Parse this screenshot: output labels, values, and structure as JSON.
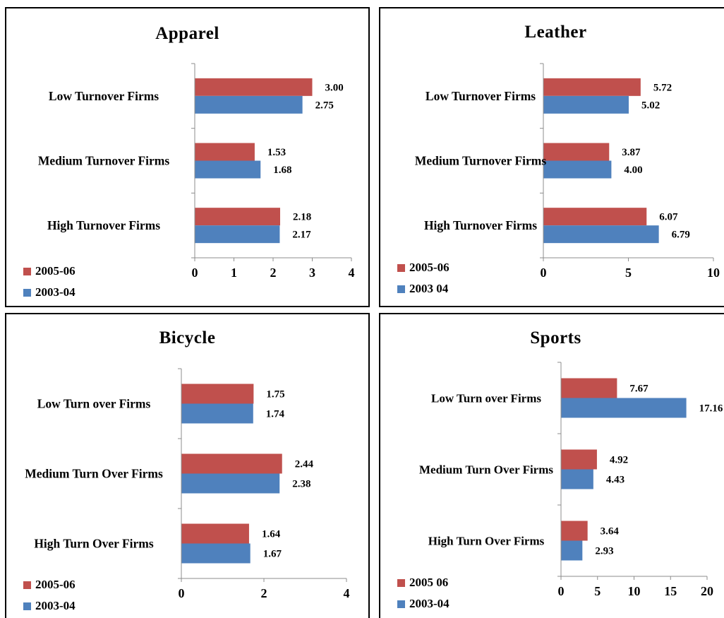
{
  "colors": {
    "series_2005": "#c0504d",
    "series_2003": "#4f81bd"
  },
  "legend": {
    "series_2005": "2005-06",
    "series_2003": "2003-04"
  },
  "chart_data": [
    {
      "type": "bar",
      "title": "Apparel",
      "categories": [
        "Low Turnover Firms",
        "Medium Turnover Firms",
        "High Turnover Firms"
      ],
      "series": [
        {
          "name": "2005-06",
          "values": [
            3.0,
            1.53,
            2.18
          ],
          "labels": [
            "3.00",
            "1.53",
            "2.18"
          ]
        },
        {
          "name": "2003-04",
          "values": [
            2.75,
            1.68,
            2.17
          ],
          "labels": [
            "2.75",
            "1.68",
            "2.17"
          ]
        }
      ],
      "ticks": [
        "0",
        "1",
        "2",
        "3",
        "4"
      ],
      "xlim": [
        0,
        4
      ],
      "legend_position": "bottom-left"
    },
    {
      "type": "bar",
      "title": "Leather",
      "categories": [
        "Low Turnover Firms",
        "Medium Turnover Firms",
        "High Turnover Firms"
      ],
      "series": [
        {
          "name": "2005-06",
          "values": [
            5.72,
            3.87,
            6.07
          ],
          "labels": [
            "5.72",
            "3.87",
            "6.07"
          ]
        },
        {
          "name": "2003 04",
          "values": [
            5.02,
            4.0,
            6.79
          ],
          "labels": [
            "5.02",
            "4.00",
            "6.79"
          ]
        }
      ],
      "ticks": [
        "0",
        "5",
        "10"
      ],
      "xlim": [
        0,
        10
      ],
      "legend_position": "bottom-left"
    },
    {
      "type": "bar",
      "title": "Bicycle",
      "categories": [
        "Low Turn over Firms",
        "Medium Turn Over Firms",
        "High Turn Over Firms"
      ],
      "series": [
        {
          "name": "2005-06",
          "values": [
            1.75,
            2.44,
            1.64
          ],
          "labels": [
            "1.75",
            "2.44",
            "1.64"
          ]
        },
        {
          "name": "2003-04",
          "values": [
            1.74,
            2.38,
            1.67
          ],
          "labels": [
            "1.74",
            "2.38",
            "1.67"
          ]
        }
      ],
      "ticks": [
        "0",
        "2",
        "4"
      ],
      "xlim": [
        0,
        4
      ],
      "legend_position": "bottom-left"
    },
    {
      "type": "bar",
      "title": "Sports",
      "categories": [
        "Low Turn over Firms",
        "Medium Turn Over Firms",
        "High Turn Over Firms"
      ],
      "series": [
        {
          "name": "2005 06",
          "values": [
            7.67,
            4.92,
            3.64
          ],
          "labels": [
            "7.67",
            "4.92",
            "3.64"
          ]
        },
        {
          "name": "2003-04",
          "values": [
            17.16,
            4.43,
            2.93
          ],
          "labels": [
            "17.16",
            "4.43",
            "2.93"
          ]
        }
      ],
      "ticks": [
        "0",
        "5",
        "10",
        "15",
        "20"
      ],
      "xlim": [
        0,
        20
      ],
      "legend_position": "bottom-left"
    }
  ]
}
